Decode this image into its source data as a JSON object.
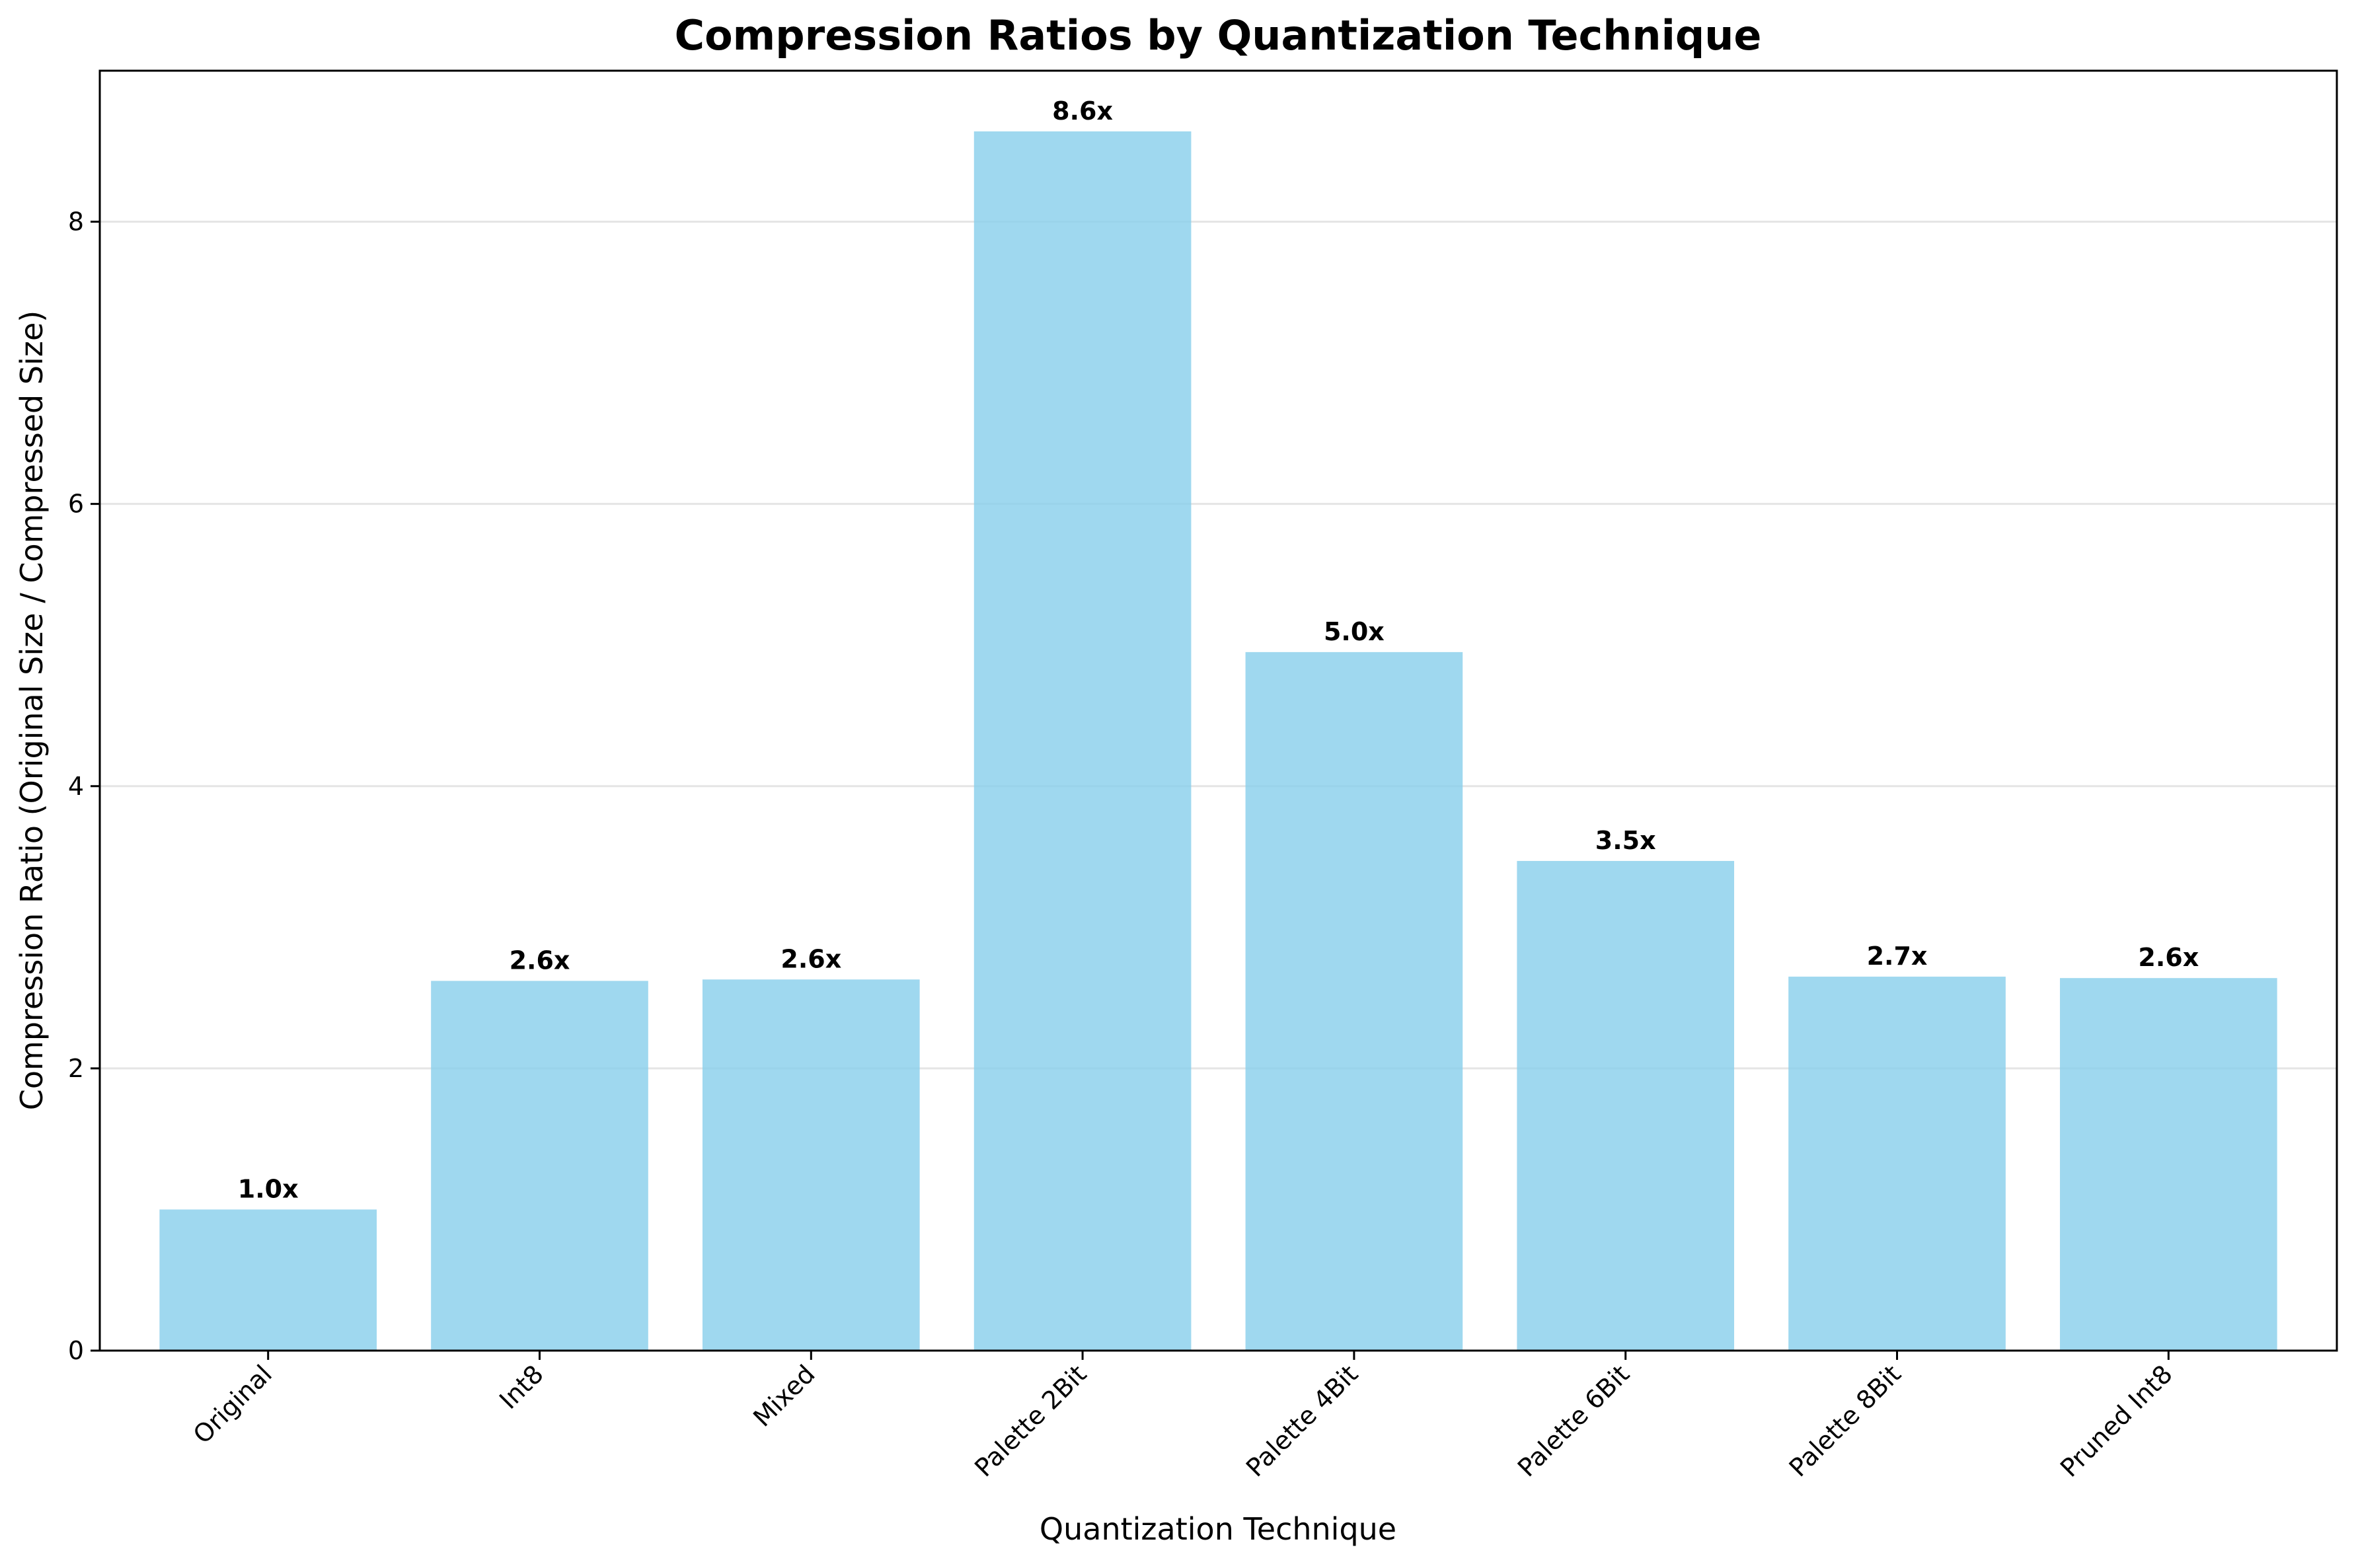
{
  "chart_data": {
    "type": "bar",
    "title": "Compression Ratios by Quantization Technique",
    "xlabel": "Quantization Technique",
    "ylabel": "Compression Ratio (Original Size / Compressed Size)",
    "categories": [
      "Original",
      "Int8",
      "Mixed",
      "Palette 2Bit",
      "Palette 4Bit",
      "Palette 6Bit",
      "Palette 8Bit",
      "Pruned Int8"
    ],
    "values": [
      1.0,
      2.62,
      2.63,
      8.64,
      4.95,
      3.47,
      2.65,
      2.64
    ],
    "data_labels": [
      "1.0x",
      "2.6x",
      "2.6x",
      "8.6x",
      "5.0x",
      "3.5x",
      "2.7x",
      "2.6x"
    ],
    "ylim": [
      0,
      9.07
    ],
    "yticks": [
      0,
      2,
      4,
      6,
      8
    ],
    "ytick_labels": [
      "0",
      "2",
      "4",
      "6",
      "8"
    ],
    "grid": "y",
    "legend": "none",
    "colors": {
      "bar": "#87CEEB",
      "axis": "#000000",
      "grid": "#e5e5e5"
    }
  }
}
